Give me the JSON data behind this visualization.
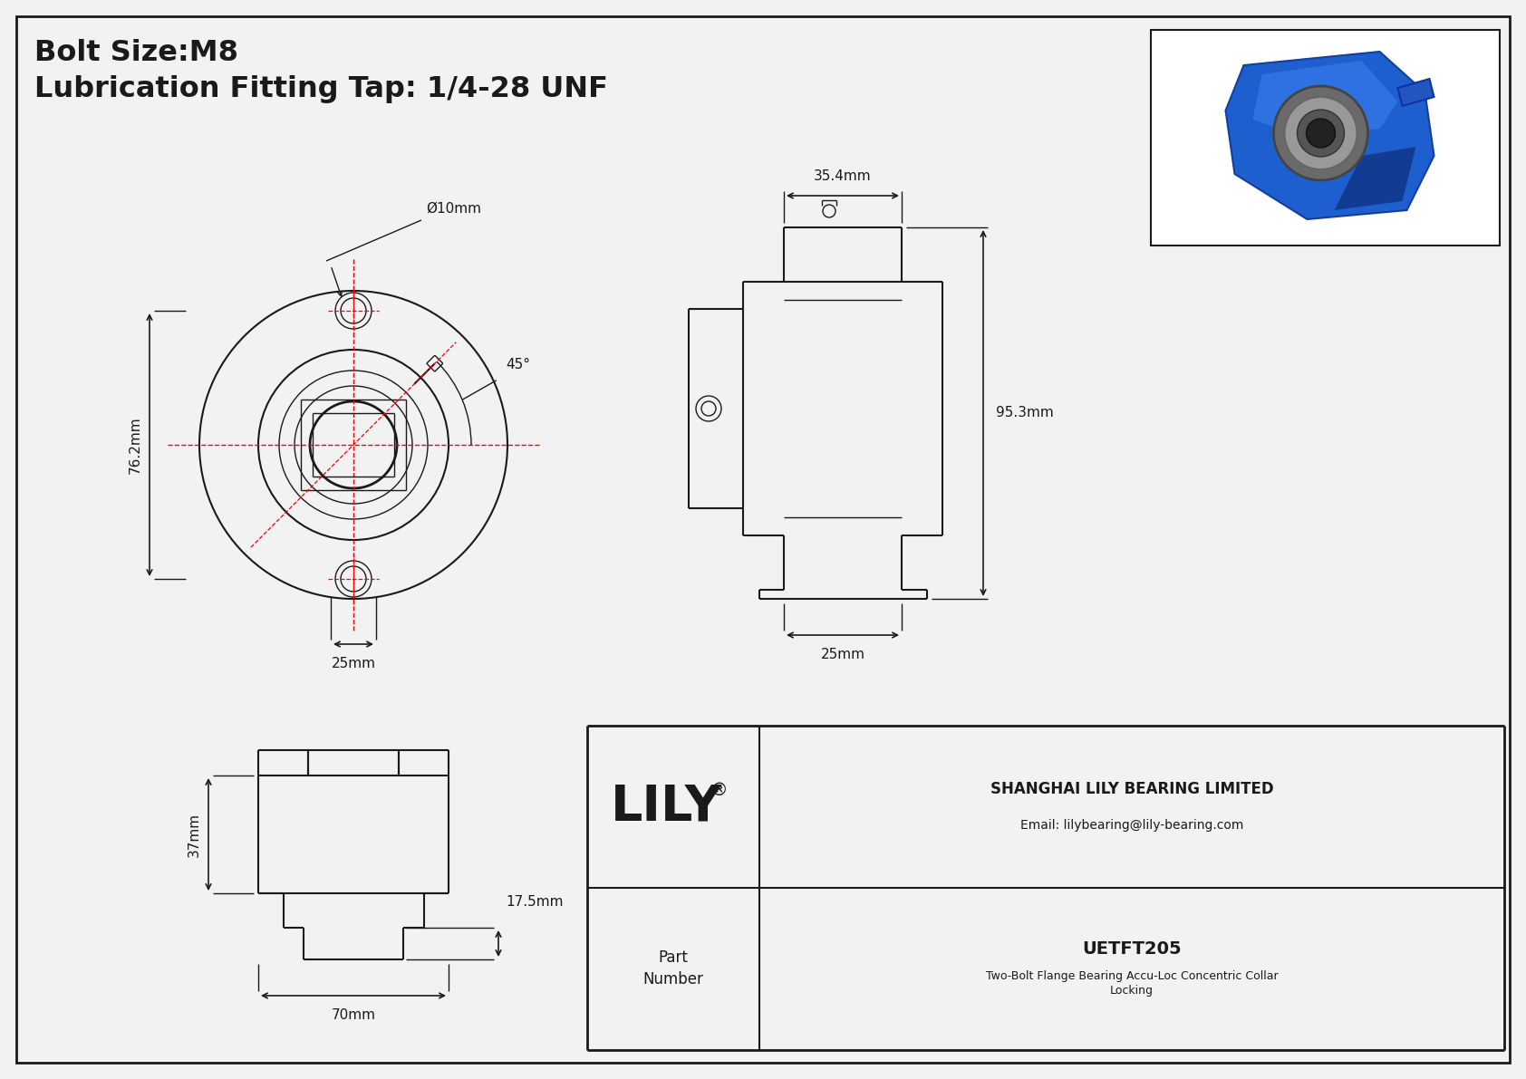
{
  "title_line1": "Bolt Size:M8",
  "title_line2": "Lubrication Fitting Tap: 1/4-28 UNF",
  "bg_color": "#f2f2f2",
  "draw_color": "#1a1a1a",
  "red_color": "#ff0000",
  "company_info1": "SHANGHAI LILY BEARING LIMITED",
  "company_info2": "Email: lilybearing@lily-bearing.com",
  "part_label": "Part\nNumber",
  "part_number": "UETFT205",
  "part_desc": "Two-Bolt Flange Bearing Accu-Loc Concentric Collar\nLocking",
  "dim_76": "76.2mm",
  "dim_25_front": "25mm",
  "dim_10": "Ø10mm",
  "dim_45": "45°",
  "dim_35": "35.4mm",
  "dim_95": "95.3mm",
  "dim_25_side": "25mm",
  "dim_37": "37mm",
  "dim_70": "70mm",
  "dim_17": "17.5mm"
}
